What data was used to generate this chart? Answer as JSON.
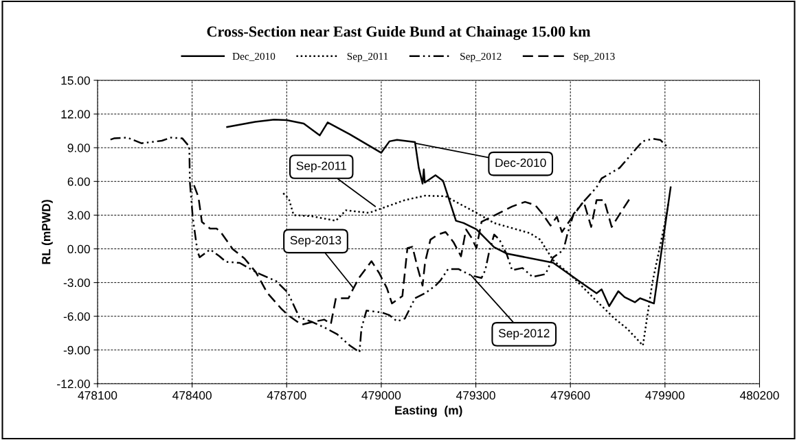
{
  "chart_data": {
    "type": "line",
    "title": "Cross-Section near East Guide Bund at Chainage 15.00 km",
    "xlabel": "Easting  (m)",
    "ylabel": "RL (mPWD)",
    "xlim": [
      478100,
      480200
    ],
    "xticks": [
      478100,
      478400,
      478700,
      479000,
      479300,
      479600,
      479900,
      480200
    ],
    "ylim": [
      -12,
      15
    ],
    "yticks": [
      {
        "value": -12,
        "label": "-12.00"
      },
      {
        "value": -9,
        "label": "-9.00"
      },
      {
        "value": -6,
        "label": "-6.00"
      },
      {
        "value": -3,
        "label": "-3.00"
      },
      {
        "value": 0,
        "label": "0.00"
      },
      {
        "value": 3,
        "label": "3.00"
      },
      {
        "value": 6,
        "label": "6.00"
      },
      {
        "value": 9,
        "label": "9.00"
      },
      {
        "value": 12,
        "label": "12.00"
      },
      {
        "value": 15,
        "label": "15.00"
      }
    ],
    "grid": true,
    "legend": "top",
    "marker": "none",
    "series": [
      {
        "name": "Dec_2010",
        "color": "#000000",
        "line_style": "solid",
        "x": [
          478511,
          478600,
          478660,
          478700,
          478754,
          478805,
          478830,
          478900,
          479000,
          479026,
          479050,
          479107,
          479119,
          479131,
          479135,
          479138,
          479172,
          479196,
          479237,
          479261,
          479302,
          479358,
          479399,
          479545,
          479602,
          479642,
          479683,
          479699,
          479723,
          479752,
          479772,
          479805,
          479821,
          479865,
          479918
        ],
        "values": [
          10.84,
          11.3,
          11.5,
          11.45,
          11.15,
          10.1,
          11.25,
          10.2,
          8.55,
          9.57,
          9.7,
          9.5,
          7.2,
          5.8,
          7.07,
          5.9,
          6.55,
          6.05,
          2.5,
          2.3,
          1.73,
          0.14,
          -0.43,
          -1.23,
          -2.36,
          -3.16,
          -3.95,
          -3.6,
          -5.1,
          -3.77,
          -4.3,
          -4.75,
          -4.4,
          -4.86,
          5.48
        ]
      },
      {
        "name": "Sep_2011",
        "color": "#000000",
        "line_style": "dotted",
        "x": [
          478689,
          478707,
          478722,
          478780,
          478856,
          478888,
          478961,
          479075,
          479139,
          479204,
          479302,
          479358,
          479472,
          479504,
          479545,
          479602,
          479683,
          479740,
          479780,
          479830,
          479860,
          479902,
          479910
        ],
        "values": [
          4.95,
          4.44,
          3.0,
          2.9,
          2.5,
          3.43,
          3.2,
          4.34,
          4.73,
          4.68,
          3.2,
          2.3,
          1.39,
          0.82,
          -1.0,
          -2.36,
          -4.64,
          -6.2,
          -7.1,
          -8.6,
          -3.0,
          2.6,
          4.0
        ]
      },
      {
        "name": "Sep_2012",
        "color": "#000000",
        "line_style": "dashdotdot",
        "x": [
          478141,
          478152,
          478195,
          478239,
          478304,
          478333,
          478369,
          478391,
          478393,
          478402,
          478417,
          478424,
          478457,
          478486,
          478507,
          478551,
          478609,
          478667,
          478704,
          478740,
          478780,
          478820,
          478860,
          478900,
          478931,
          478937,
          478953,
          479002,
          479026,
          479050,
          479075,
          479107,
          479139,
          479172,
          479188,
          479212,
          479245,
          479269,
          479285,
          479318,
          479330,
          479342,
          479358,
          479375,
          479399,
          479415,
          479448,
          479480,
          479521,
          479545,
          479578,
          479590,
          479610,
          479642,
          479683,
          479699,
          479756,
          479805,
          479829,
          479862,
          479886,
          479906
        ],
        "values": [
          9.72,
          9.83,
          9.9,
          9.4,
          9.62,
          9.9,
          9.83,
          9.1,
          5.9,
          2.8,
          -0.24,
          -0.75,
          -0.05,
          -0.64,
          -1.15,
          -1.25,
          -2.17,
          -2.88,
          -3.9,
          -6.1,
          -6.5,
          -7.0,
          -7.6,
          -8.6,
          -9.2,
          -7.1,
          -5.5,
          -5.66,
          -5.9,
          -6.45,
          -6.2,
          -4.4,
          -3.95,
          -3.27,
          -2.8,
          -1.8,
          -1.8,
          -2.14,
          -2.36,
          -2.6,
          -1.9,
          -0.3,
          1.27,
          0.82,
          -0.55,
          -1.9,
          -1.7,
          -2.5,
          -2.25,
          -0.77,
          -0.1,
          1.27,
          3.1,
          4.2,
          5.48,
          6.27,
          7.2,
          8.8,
          9.57,
          9.8,
          9.68,
          9.1
        ]
      },
      {
        "name": "Sep_2013",
        "color": "#000000",
        "line_style": "dashed",
        "x": [
          478406,
          478420,
          478431,
          478457,
          478478,
          478493,
          478529,
          478566,
          478602,
          478638,
          478682,
          478704,
          478747,
          478783,
          478820,
          478840,
          478856,
          478896,
          478912,
          478929,
          478969,
          478993,
          479018,
          479034,
          479067,
          479083,
          479099,
          479115,
          479131,
          479139,
          479156,
          479180,
          479204,
          479229,
          479253,
          479269,
          479285,
          479302,
          479318,
          479375,
          479415,
          479456,
          479488,
          479512,
          479537,
          479557,
          479573,
          479610,
          479642,
          479666,
          479683,
          479707,
          479731,
          479764,
          479788
        ],
        "values": [
          5.66,
          4.6,
          2.4,
          1.8,
          1.8,
          1.4,
          -0.03,
          -0.85,
          -2.07,
          -3.9,
          -5.3,
          -5.9,
          -6.75,
          -6.5,
          -6.3,
          -6.7,
          -4.4,
          -4.4,
          -3.5,
          -2.6,
          -1.1,
          -2.14,
          -3.5,
          -4.86,
          -4.2,
          0.07,
          0.18,
          -1.64,
          -3.27,
          -1.2,
          0.82,
          1.27,
          1.5,
          0.6,
          -0.66,
          1.73,
          1.05,
          0.07,
          2.4,
          3.2,
          3.77,
          4.18,
          3.9,
          3.1,
          2.07,
          2.86,
          1.5,
          3.0,
          4.23,
          1.95,
          4.34,
          4.34,
          1.95,
          3.43,
          4.45
        ]
      }
    ],
    "annotations": [
      {
        "text": "Sep-2011",
        "x": 478981,
        "y": 3.77
      },
      {
        "text": "Dec-2010",
        "x": 479107,
        "y": 9.4
      },
      {
        "text": "Sep-2013",
        "x": 478912,
        "y": -3.5
      },
      {
        "text": "Sep-2012",
        "x": 479285,
        "y": -2.36
      }
    ]
  }
}
